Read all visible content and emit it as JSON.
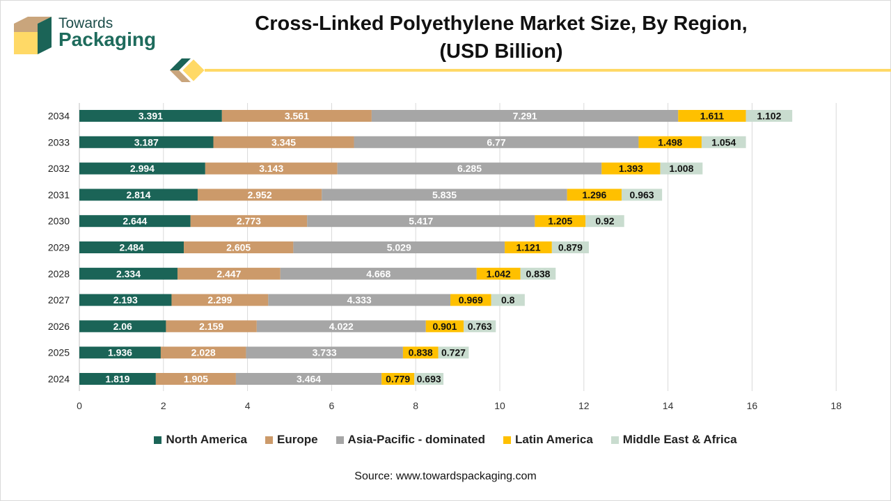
{
  "brand": {
    "line1": "Towards",
    "line2": "Packaging"
  },
  "title_line1": "Cross-Linked Polyethylene Market Size, By Region,",
  "title_line2": "(USD Billion)",
  "source": "Source: www.towardspackaging.com",
  "colors": {
    "North America": "#1b6457",
    "Europe": "#cc9a6a",
    "Asia-Pacific - dominated": "#a6a6a6",
    "Latin America": "#ffc000",
    "Middle East & Africa": "#c9dccf"
  },
  "chart_data": {
    "type": "bar",
    "orientation": "horizontal",
    "stacked": true,
    "categories": [
      "2034",
      "2033",
      "2032",
      "2031",
      "2030",
      "2029",
      "2028",
      "2027",
      "2026",
      "2025",
      "2024"
    ],
    "series": [
      {
        "name": "North America",
        "values": [
          3.391,
          3.187,
          2.994,
          2.814,
          2.644,
          2.484,
          2.334,
          2.193,
          2.06,
          1.936,
          1.819
        ]
      },
      {
        "name": "Europe",
        "values": [
          3.561,
          3.345,
          3.143,
          2.952,
          2.773,
          2.605,
          2.447,
          2.299,
          2.159,
          2.028,
          1.905
        ]
      },
      {
        "name": "Asia-Pacific - dominated",
        "values": [
          7.291,
          6.77,
          6.285,
          5.835,
          5.417,
          5.029,
          4.668,
          4.333,
          4.022,
          3.733,
          3.464
        ]
      },
      {
        "name": "Latin America",
        "values": [
          1.611,
          1.498,
          1.393,
          1.296,
          1.205,
          1.121,
          1.042,
          0.969,
          0.901,
          0.838,
          0.779
        ]
      },
      {
        "name": "Middle East & Africa",
        "values": [
          1.102,
          1.054,
          1.008,
          0.963,
          0.92,
          0.879,
          0.838,
          0.8,
          0.763,
          0.727,
          0.693
        ]
      }
    ],
    "data_labels": [
      [
        "3.391",
        "3.187",
        "2.994",
        "2.814",
        "2.644",
        "2.484",
        "2.334",
        "2.193",
        "2.06",
        "1.936",
        "1.819"
      ],
      [
        "3.561",
        "3.345",
        "3.143",
        "2.952",
        "2.773",
        "2.605",
        "2.447",
        "2.299",
        "2.159",
        "2.028",
        "1.905"
      ],
      [
        "7.291",
        "6.77",
        "6.285",
        "5.835",
        "5.417",
        "5.029",
        "4.668",
        "4.333",
        "4.022",
        "3.733",
        "3.464"
      ],
      [
        "1.611",
        "1.498",
        "1.393",
        "1.296",
        "1.205",
        "1.121",
        "1.042",
        "0.969",
        "0.901",
        "0.838",
        "0.779"
      ],
      [
        "1.102",
        "1.054",
        "1.008",
        "0.963",
        "0.92",
        "0.879",
        "0.838",
        "0.8",
        "0.763",
        "0.727",
        "0.693"
      ]
    ],
    "x_ticks": [
      "0",
      "2",
      "4",
      "6",
      "8",
      "10",
      "12",
      "14",
      "16",
      "18"
    ],
    "xlim": [
      0,
      18
    ],
    "grid": true,
    "legend_position": "bottom"
  }
}
